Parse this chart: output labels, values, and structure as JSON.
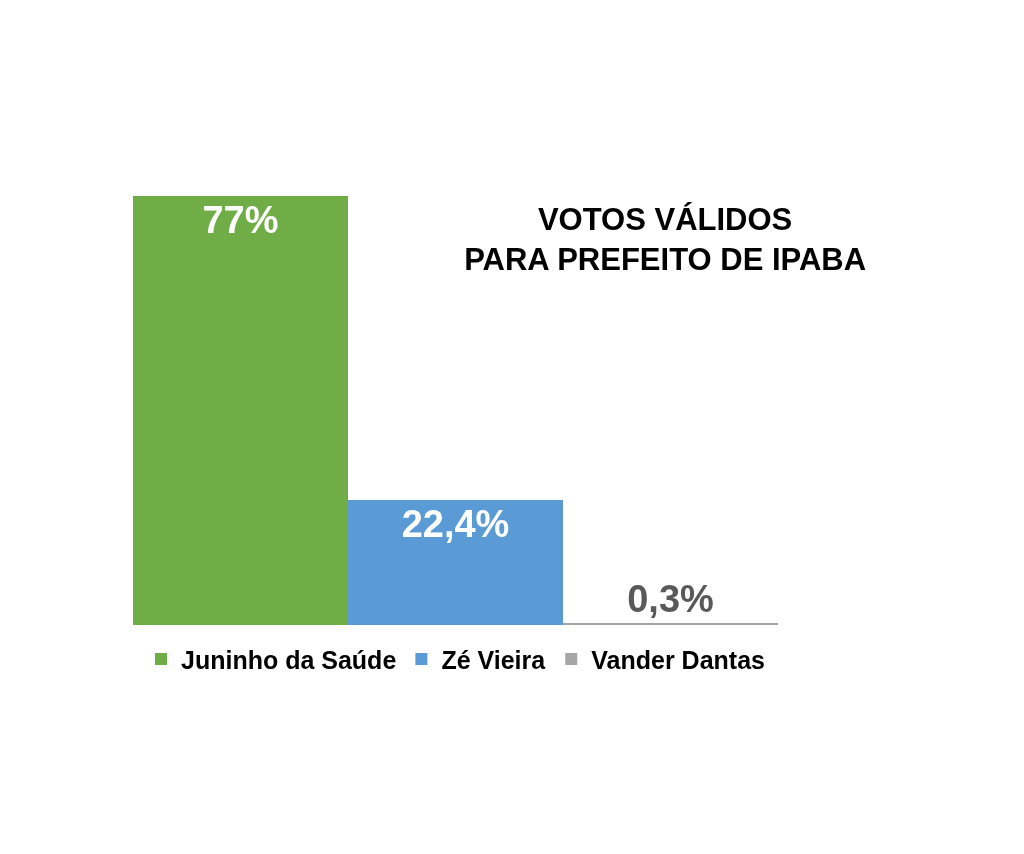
{
  "chart_data": {
    "type": "bar",
    "title": "VOTOS VÁLIDOS\nPARA PREFEITO DE IPABA",
    "categories": [
      null
    ],
    "series": [
      {
        "name": "Juninho da Saúde",
        "color": "#70ad47",
        "values": [
          77
        ],
        "value_labels": [
          "77%"
        ]
      },
      {
        "name": "Zé Vieira",
        "color": "#5b9bd5",
        "values": [
          22.4
        ],
        "value_labels": [
          "22,4%"
        ]
      },
      {
        "name": "Vander Dantas",
        "color": "#a5a5a5",
        "values": [
          0.3
        ],
        "value_labels": [
          "0,3%"
        ]
      }
    ],
    "legend": "bottom"
  }
}
